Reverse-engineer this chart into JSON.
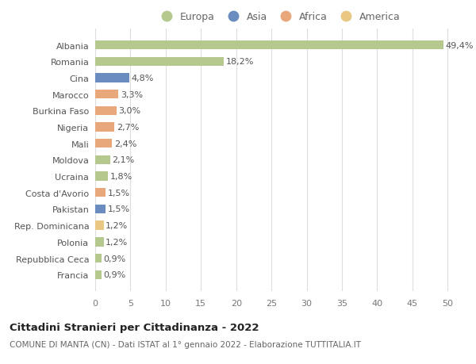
{
  "countries": [
    "Francia",
    "Repubblica Ceca",
    "Polonia",
    "Rep. Dominicana",
    "Pakistan",
    "Costa d'Avorio",
    "Ucraina",
    "Moldova",
    "Mali",
    "Nigeria",
    "Burkina Faso",
    "Marocco",
    "Cina",
    "Romania",
    "Albania"
  ],
  "values": [
    0.9,
    0.9,
    1.2,
    1.2,
    1.5,
    1.5,
    1.8,
    2.1,
    2.4,
    2.7,
    3.0,
    3.3,
    4.8,
    18.2,
    49.4
  ],
  "labels": [
    "0,9%",
    "0,9%",
    "1,2%",
    "1,2%",
    "1,5%",
    "1,5%",
    "1,8%",
    "2,1%",
    "2,4%",
    "2,7%",
    "3,0%",
    "3,3%",
    "4,8%",
    "18,2%",
    "49,4%"
  ],
  "colors": [
    "#b5c98e",
    "#b5c98e",
    "#b5c98e",
    "#e8c882",
    "#6b8cbf",
    "#e8a87c",
    "#b5c98e",
    "#b5c98e",
    "#e8a87c",
    "#e8a87c",
    "#e8a87c",
    "#e8a87c",
    "#6b8cbf",
    "#b5c98e",
    "#b5c98e"
  ],
  "legend_labels": [
    "Europa",
    "Asia",
    "Africa",
    "America"
  ],
  "legend_colors": [
    "#b5c98e",
    "#6b8cbf",
    "#e8a87c",
    "#e8c882"
  ],
  "title": "Cittadini Stranieri per Cittadinanza - 2022",
  "subtitle": "COMUNE DI MANTA (CN) - Dati ISTAT al 1° gennaio 2022 - Elaborazione TUTTITALIA.IT",
  "xlim": [
    0,
    52
  ],
  "xticks": [
    0,
    5,
    10,
    15,
    20,
    25,
    30,
    35,
    40,
    45,
    50
  ],
  "background_color": "#ffffff",
  "grid_color": "#dddddd",
  "bar_height": 0.55,
  "label_fontsize": 8,
  "tick_fontsize": 8,
  "legend_fontsize": 9
}
